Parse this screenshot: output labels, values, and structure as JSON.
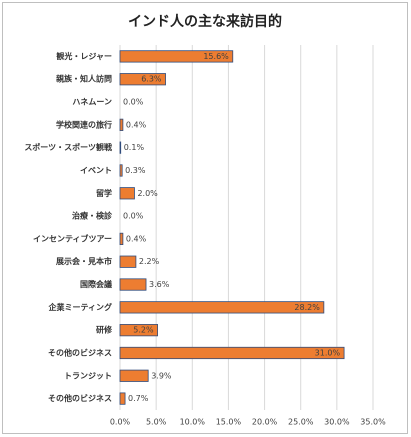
{
  "chart_data": {
    "type": "bar",
    "orientation": "horizontal",
    "title": "インド人の主な来訪目的",
    "categories": [
      "観光・レジャー",
      "親族・知人訪問",
      "ハネムーン",
      "学校関連の旅行",
      "スポーツ・スポーツ観戦",
      "イベント",
      "留学",
      "治療・検診",
      "インセンティブツアー",
      "展示会・見本市",
      "国際会議",
      "企業ミーティング",
      "研修",
      "その他のビジネス",
      "トランジット",
      "その他のビジネス"
    ],
    "values": [
      15.6,
      6.3,
      0.0,
      0.4,
      0.1,
      0.3,
      2.0,
      0.0,
      0.4,
      2.2,
      3.6,
      28.2,
      5.2,
      31.0,
      3.9,
      0.7
    ],
    "value_labels": [
      "15.6%",
      "6.3%",
      "0.0%",
      "0.4%",
      "0.1%",
      "0.3%",
      "2.0%",
      "0.0%",
      "0.4%",
      "2.2%",
      "3.6%",
      "28.2%",
      "5.2%",
      "31.0%",
      "3.9%",
      "0.7%"
    ],
    "color": "#ed7d31",
    "edge_color": "#2f4b7c",
    "xlim": [
      0,
      35
    ],
    "xticks": [
      {
        "value": 0,
        "label": "0.0%"
      },
      {
        "value": 5,
        "label": "5.0%"
      },
      {
        "value": 10,
        "label": "10.0%"
      },
      {
        "value": 15,
        "label": "15.0%"
      },
      {
        "value": 20,
        "label": "20.0%"
      },
      {
        "value": 25,
        "label": "25.0%"
      },
      {
        "value": 30,
        "label": "30.0%"
      },
      {
        "value": 35,
        "label": "35.0%"
      }
    ],
    "grid": true
  }
}
